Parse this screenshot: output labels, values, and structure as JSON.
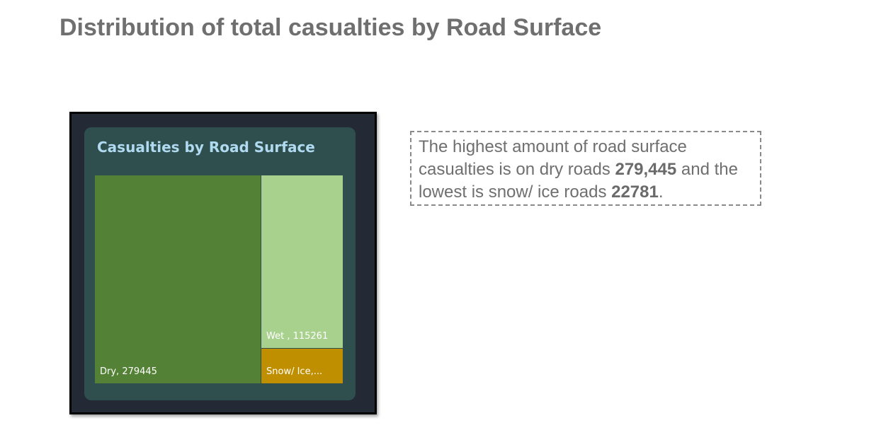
{
  "slide": {
    "title": "Distribution of total casualties by Road Surface"
  },
  "insight": {
    "part1": "The highest amount of road surface casualties is on dry roads ",
    "highest_value": "279,445",
    "part2": " and the lowest is snow/ ice roads ",
    "lowest_value": "22781",
    "part3": "."
  },
  "colors": {
    "frame_background": "#232a35",
    "card_background": "#2f4f4f",
    "chart_title": "#b0daf0",
    "dry": "#538135",
    "wet": "#a9d18e",
    "snow_ice": "#bf8f00"
  },
  "chart_data": {
    "type": "treemap",
    "title": "Casualties by Road Surface",
    "items": [
      {
        "name": "Dry",
        "value": 279445,
        "label": "Dry, 279445",
        "color": "#538135"
      },
      {
        "name": "Wet",
        "value": 115261,
        "label": "Wet , 115261",
        "color": "#a9d18e"
      },
      {
        "name": "Snow/ Ice",
        "value": 22781,
        "label": "Snow/ Ice,...",
        "color": "#bf8f00"
      }
    ]
  }
}
